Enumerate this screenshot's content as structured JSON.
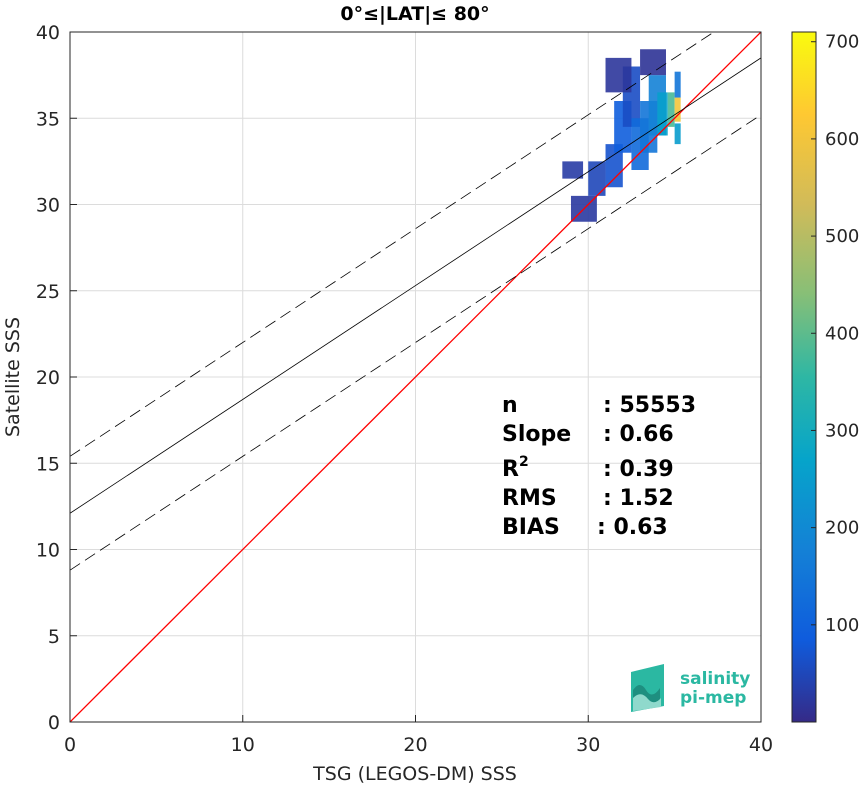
{
  "chart_data": {
    "type": "heatmap",
    "title": "0°≤|LAT|≤ 80°",
    "xlabel": "TSG (LEGOS-DM) SSS",
    "ylabel": "Satellite SSS",
    "xlim": [
      0,
      40
    ],
    "ylim": [
      0,
      40
    ],
    "xticks": [
      "0",
      "10",
      "20",
      "30",
      "40"
    ],
    "yticks": [
      "0",
      "5",
      "10",
      "15",
      "20",
      "25",
      "30",
      "35",
      "40"
    ],
    "grid": true,
    "colorbar": {
      "range": [
        0,
        710
      ],
      "ticks": [
        "100",
        "200",
        "300",
        "400",
        "500",
        "600",
        "700"
      ],
      "colormap": "parula"
    },
    "lines": [
      {
        "name": "1:1",
        "color": "#ff0000",
        "style": "solid",
        "intercept": 0,
        "slope": 1
      },
      {
        "name": "fit",
        "color": "#000000",
        "style": "solid",
        "intercept": 12.1,
        "slope": 0.66
      },
      {
        "name": "fit + 1 std",
        "color": "#000000",
        "style": "dashed",
        "intercept": 15.4,
        "slope": 0.66
      },
      {
        "name": "fit - 1 std",
        "color": "#000000",
        "style": "dashed",
        "intercept": 8.8,
        "slope": 0.66
      }
    ],
    "density_cells": [
      {
        "x": 28.5,
        "y": 31.5,
        "w": 1.2,
        "h": 1.0,
        "v": 30
      },
      {
        "x": 29.0,
        "y": 29.0,
        "w": 1.5,
        "h": 1.5,
        "v": 25
      },
      {
        "x": 30.0,
        "y": 30.5,
        "w": 1.0,
        "h": 2.0,
        "v": 50
      },
      {
        "x": 31.0,
        "y": 31.0,
        "w": 1.0,
        "h": 2.5,
        "v": 70
      },
      {
        "x": 31.5,
        "y": 33.0,
        "w": 1.0,
        "h": 3.0,
        "v": 90
      },
      {
        "x": 32.0,
        "y": 34.5,
        "w": 1.0,
        "h": 3.5,
        "v": 60
      },
      {
        "x": 32.5,
        "y": 32.0,
        "w": 1.0,
        "h": 3.0,
        "v": 120
      },
      {
        "x": 33.0,
        "y": 33.0,
        "w": 1.0,
        "h": 3.0,
        "v": 150
      },
      {
        "x": 33.5,
        "y": 34.0,
        "w": 1.0,
        "h": 3.5,
        "v": 180
      },
      {
        "x": 34.0,
        "y": 34.0,
        "w": 0.6,
        "h": 2.5,
        "v": 260
      },
      {
        "x": 34.6,
        "y": 34.5,
        "w": 0.4,
        "h": 2.0,
        "v": 380
      },
      {
        "x": 35.0,
        "y": 34.8,
        "w": 0.35,
        "h": 1.4,
        "v": 600
      },
      {
        "x": 35.0,
        "y": 33.5,
        "w": 0.35,
        "h": 1.2,
        "v": 250
      },
      {
        "x": 35.0,
        "y": 36.2,
        "w": 0.35,
        "h": 1.5,
        "v": 150
      },
      {
        "x": 31.0,
        "y": 36.5,
        "w": 1.5,
        "h": 2.0,
        "v": 20
      },
      {
        "x": 33.0,
        "y": 37.5,
        "w": 1.5,
        "h": 1.5,
        "v": 15
      }
    ]
  },
  "stats": {
    "n_label": "n",
    "n_value": ": 55553",
    "slope_label": "Slope",
    "slope_value": ": 0.66",
    "r2_label": "R",
    "r2_sup": "2",
    "r2_value": ": 0.39",
    "rms_label": "RMS",
    "rms_value": ": 1.52",
    "bias_label": "BIAS",
    "bias_value": ": 0.63"
  },
  "logo": {
    "line1": "salinity",
    "line2": "pi-mep",
    "color": "#2bb8a2"
  }
}
